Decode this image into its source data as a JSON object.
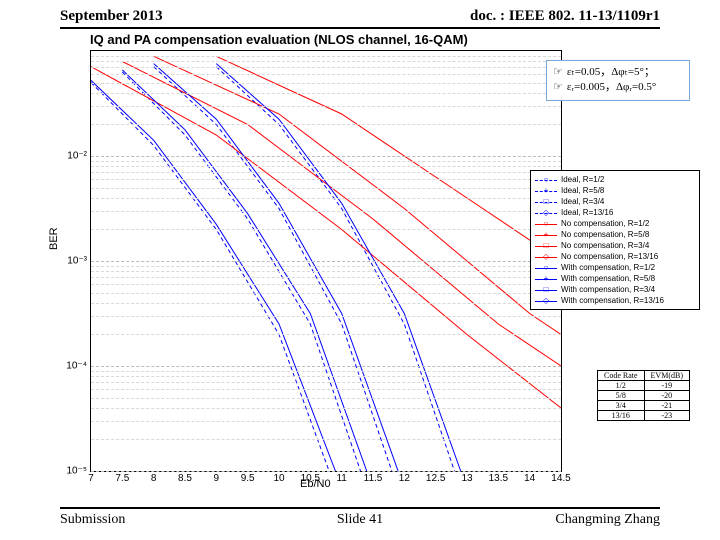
{
  "header": {
    "left": "September 2013",
    "right": "doc. : IEEE 802. 11-13/1109r1"
  },
  "footer": {
    "left": "Submission",
    "center": "Slide 41",
    "right": "Changming Zhang"
  },
  "chart": {
    "title": "IQ and PA compensation evaluation (NLOS channel, 16-QAM)",
    "ylabel": "BER",
    "xlabel": "Eb/N0",
    "type": "line",
    "y_scale": "log",
    "ylim_exp": [
      -5,
      -1
    ],
    "xlim": [
      7,
      14.5
    ],
    "xtick_step": 0.5,
    "background_color": "#ffffff",
    "grid_color": "#bbbbbb",
    "minor_grid_color": "#d8d8d8",
    "axis_fontsize": 10,
    "label_fontsize": 11,
    "title_fontsize": 13,
    "yticks": [
      {
        "exp": -2,
        "label": "10⁻²"
      },
      {
        "exp": -3,
        "label": "10⁻³"
      },
      {
        "exp": -4,
        "label": "10⁻⁴"
      },
      {
        "exp": -5,
        "label": "10⁻⁵"
      }
    ],
    "xticks": [
      7,
      7.5,
      8,
      8.5,
      9,
      9.5,
      10,
      10.5,
      11,
      11.5,
      12,
      12.5,
      13,
      13.5,
      14,
      14.5
    ],
    "legend": [
      {
        "label": "Ideal, R=1/2",
        "color": "#0000ff",
        "style": "dashed",
        "marker": "○"
      },
      {
        "label": "Ideal, R=5/8",
        "color": "#0000ff",
        "style": "dashed",
        "marker": "+"
      },
      {
        "label": "Ideal, R=3/4",
        "color": "#0000ff",
        "style": "dashed",
        "marker": "□"
      },
      {
        "label": "Ideal, R=13/16",
        "color": "#0000ff",
        "style": "dashed",
        "marker": "◇"
      },
      {
        "label": "No compensation, R=1/2",
        "color": "#ff0000",
        "style": "solid",
        "marker": "○"
      },
      {
        "label": "No compensation, R=5/8",
        "color": "#ff0000",
        "style": "solid",
        "marker": "+"
      },
      {
        "label": "No compensation, R=3/4",
        "color": "#ff0000",
        "style": "solid",
        "marker": "□"
      },
      {
        "label": "No compensation, R=13/16",
        "color": "#ff0000",
        "style": "solid",
        "marker": "◇"
      },
      {
        "label": "With compensation, R=1/2",
        "color": "#0000ff",
        "style": "solid",
        "marker": "○"
      },
      {
        "label": "With compensation, R=5/8",
        "color": "#0000ff",
        "style": "solid",
        "marker": "+"
      },
      {
        "label": "With compensation, R=3/4",
        "color": "#0000ff",
        "style": "solid",
        "marker": "□"
      },
      {
        "label": "With compensation, R=13/16",
        "color": "#0000ff",
        "style": "solid",
        "marker": "◇"
      }
    ],
    "series": [
      {
        "color": "#0000ff",
        "style": "dashed",
        "pts": [
          [
            7,
            -1.3
          ],
          [
            8,
            -1.9
          ],
          [
            9,
            -2.7
          ],
          [
            10,
            -3.7
          ],
          [
            10.8,
            -5
          ]
        ]
      },
      {
        "color": "#0000ff",
        "style": "dashed",
        "pts": [
          [
            7.5,
            -1.2
          ],
          [
            8.5,
            -1.8
          ],
          [
            9.5,
            -2.6
          ],
          [
            10.5,
            -3.6
          ],
          [
            11.3,
            -5
          ]
        ]
      },
      {
        "color": "#0000ff",
        "style": "dashed",
        "pts": [
          [
            8,
            -1.15
          ],
          [
            9,
            -1.7
          ],
          [
            10,
            -2.5
          ],
          [
            11,
            -3.6
          ],
          [
            11.8,
            -5
          ]
        ]
      },
      {
        "color": "#0000ff",
        "style": "dashed",
        "pts": [
          [
            9,
            -1.15
          ],
          [
            10,
            -1.7
          ],
          [
            11,
            -2.5
          ],
          [
            12,
            -3.6
          ],
          [
            12.8,
            -5
          ]
        ]
      },
      {
        "color": "#ff0000",
        "style": "solid",
        "pts": [
          [
            7,
            -1.15
          ],
          [
            9,
            -1.8
          ],
          [
            11,
            -2.7
          ],
          [
            13,
            -3.7
          ],
          [
            14.5,
            -4.4
          ]
        ]
      },
      {
        "color": "#ff0000",
        "style": "solid",
        "pts": [
          [
            7.5,
            -1.1
          ],
          [
            9.5,
            -1.7
          ],
          [
            11.5,
            -2.6
          ],
          [
            13.5,
            -3.6
          ],
          [
            14.5,
            -4.0
          ]
        ]
      },
      {
        "color": "#ff0000",
        "style": "solid",
        "pts": [
          [
            8,
            -1.05
          ],
          [
            10,
            -1.6
          ],
          [
            12,
            -2.5
          ],
          [
            14,
            -3.5
          ],
          [
            14.5,
            -3.7
          ]
        ]
      },
      {
        "color": "#ff0000",
        "style": "solid",
        "pts": [
          [
            9,
            -1.05
          ],
          [
            11,
            -1.6
          ],
          [
            13,
            -2.4
          ],
          [
            14.5,
            -3.0
          ]
        ]
      },
      {
        "color": "#0000ff",
        "style": "solid",
        "pts": [
          [
            7,
            -1.28
          ],
          [
            8,
            -1.85
          ],
          [
            9,
            -2.65
          ],
          [
            10,
            -3.6
          ],
          [
            10.9,
            -5
          ]
        ]
      },
      {
        "color": "#0000ff",
        "style": "solid",
        "pts": [
          [
            7.5,
            -1.18
          ],
          [
            8.5,
            -1.75
          ],
          [
            9.5,
            -2.55
          ],
          [
            10.5,
            -3.5
          ],
          [
            11.4,
            -5
          ]
        ]
      },
      {
        "color": "#0000ff",
        "style": "solid",
        "pts": [
          [
            8,
            -1.12
          ],
          [
            9,
            -1.65
          ],
          [
            10,
            -2.45
          ],
          [
            11,
            -3.5
          ],
          [
            11.9,
            -5
          ]
        ]
      },
      {
        "color": "#0000ff",
        "style": "solid",
        "pts": [
          [
            9,
            -1.12
          ],
          [
            10,
            -1.65
          ],
          [
            11,
            -2.45
          ],
          [
            12,
            -3.5
          ],
          [
            12.9,
            -5
          ]
        ]
      }
    ]
  },
  "annotation": {
    "line1": "εₜ=0.05，Δφₜ=5°；",
    "line2": "εᵣ=0.005，Δφᵣ=0.5°"
  },
  "evm_table": {
    "columns": [
      "Code Rate",
      "EVM(dB)"
    ],
    "rows": [
      [
        "1/2",
        "-19"
      ],
      [
        "5/8",
        "-20"
      ],
      [
        "3/4",
        "-21"
      ],
      [
        "13/16",
        "-23"
      ]
    ]
  }
}
